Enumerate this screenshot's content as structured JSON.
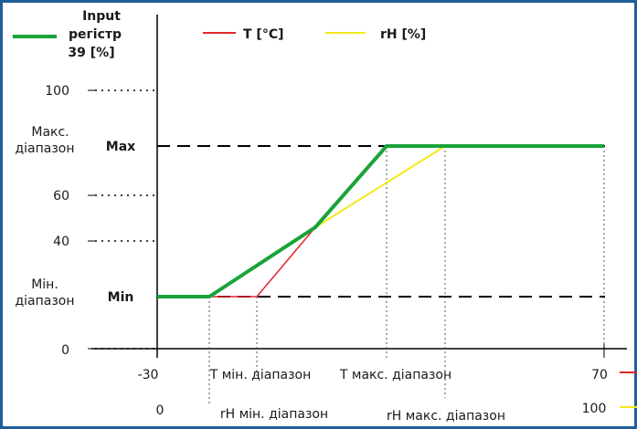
{
  "legend": {
    "input_line1": "Input",
    "input_line2": "регістр",
    "input_line3": "39  [%]",
    "temp": "T [°C]",
    "rh": "rH [%]"
  },
  "y_axis": {
    "tick_100": "100",
    "tick_60": "60",
    "tick_40": "40",
    "tick_0": "0",
    "max_range_line1": "Макс.",
    "max_range_line2": "діапазон",
    "min_range_line1": "Мін.",
    "min_range_line2": "діапазон",
    "max_label": "Max",
    "min_label": "Min"
  },
  "x_axis": {
    "temp_start": "-30",
    "temp_end": "70",
    "rh_start": "0",
    "rh_end": "100",
    "t_min_range": "T мін. діапазон",
    "t_max_range": "T макс. діапазон",
    "rh_min_range": "rH мін. діапазон",
    "rh_max_range": "rH макс. діапазон"
  },
  "colors": {
    "frame": "#1f5f99",
    "input_line": "#1aa33a",
    "temp_line": "#e0262a",
    "rh_line": "#f2ea1c"
  }
}
